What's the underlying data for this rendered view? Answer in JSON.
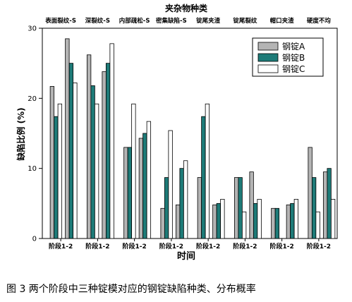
{
  "chart_data": {
    "type": "bar",
    "title": "夹杂物种类",
    "xlabel": "时间",
    "ylabel": "缺陷比例 (%)",
    "ylim": [
      0,
      30
    ],
    "yticks": [
      0,
      10,
      20,
      30
    ],
    "top_categories": [
      "表面裂纹-S",
      "深裂纹-S",
      "内部疏松-S",
      "密集缺陷-S",
      "锭尾夹渣",
      "锭尾裂纹",
      "帽口夹渣",
      "硬度不均"
    ],
    "categories": [
      "阶段1-2",
      "阶段1-2",
      "阶段1-2",
      "阶段1-2",
      "阶段1-2",
      "阶段1-2",
      "阶段1-2",
      "阶段1-2"
    ],
    "legend_position": "top-right",
    "series": [
      {
        "name": "钢锭A",
        "color": "#b4b4b4"
      },
      {
        "name": "钢锭B",
        "color": "#1e7b78"
      },
      {
        "name": "钢锭C",
        "color": "#ffffff"
      }
    ],
    "bars": [
      [
        [
          21.7,
          17.4,
          19.2
        ],
        [
          28.5,
          25.0,
          22.2
        ]
      ],
      [
        [
          26.2,
          21.8,
          19.2
        ],
        [
          23.8,
          25.0,
          27.8
        ]
      ],
      [
        [
          13.0,
          13.0,
          19.2
        ],
        [
          14.3,
          15.0,
          16.7
        ]
      ],
      [
        [
          4.3,
          8.7,
          15.4
        ],
        [
          4.8,
          10.0,
          11.1
        ]
      ],
      [
        [
          8.7,
          17.4,
          19.2
        ],
        [
          4.8,
          5.0,
          5.6
        ]
      ],
      [
        [
          8.7,
          8.7,
          3.8
        ],
        [
          9.5,
          5.0,
          5.6
        ]
      ],
      [
        [
          4.3,
          4.3,
          0
        ],
        [
          4.8,
          5.0,
          5.6
        ]
      ],
      [
        [
          13.0,
          8.7,
          3.8
        ],
        [
          9.5,
          10.0,
          5.6
        ]
      ]
    ]
  },
  "caption": "图 3  两个阶段中三种锭模对应的钢锭缺陷种类、分布概率"
}
